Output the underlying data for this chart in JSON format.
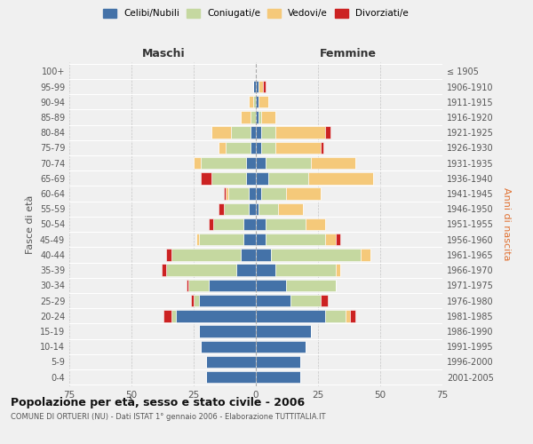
{
  "age_groups": [
    "0-4",
    "5-9",
    "10-14",
    "15-19",
    "20-24",
    "25-29",
    "30-34",
    "35-39",
    "40-44",
    "45-49",
    "50-54",
    "55-59",
    "60-64",
    "65-69",
    "70-74",
    "75-79",
    "80-84",
    "85-89",
    "90-94",
    "95-99",
    "100+"
  ],
  "birth_years": [
    "2001-2005",
    "1996-2000",
    "1991-1995",
    "1986-1990",
    "1981-1985",
    "1976-1980",
    "1971-1975",
    "1966-1970",
    "1961-1965",
    "1956-1960",
    "1951-1955",
    "1946-1950",
    "1941-1945",
    "1936-1940",
    "1931-1935",
    "1926-1930",
    "1921-1925",
    "1916-1920",
    "1911-1915",
    "1906-1910",
    "≤ 1905"
  ],
  "males": {
    "celibi": [
      20,
      20,
      22,
      23,
      32,
      23,
      19,
      8,
      6,
      5,
      5,
      3,
      3,
      4,
      4,
      2,
      2,
      0,
      0,
      1,
      0
    ],
    "coniugati": [
      0,
      0,
      0,
      0,
      2,
      2,
      8,
      28,
      28,
      18,
      12,
      10,
      8,
      14,
      18,
      10,
      8,
      2,
      1,
      0,
      0
    ],
    "vedovi": [
      0,
      0,
      0,
      0,
      0,
      0,
      0,
      0,
      0,
      1,
      0,
      0,
      1,
      0,
      3,
      3,
      8,
      4,
      2,
      0,
      0
    ],
    "divorziati": [
      0,
      0,
      0,
      0,
      3,
      1,
      1,
      2,
      2,
      0,
      2,
      2,
      1,
      4,
      0,
      0,
      0,
      0,
      0,
      0,
      0
    ]
  },
  "females": {
    "nubili": [
      18,
      18,
      20,
      22,
      28,
      14,
      12,
      8,
      6,
      4,
      4,
      1,
      2,
      5,
      4,
      2,
      2,
      1,
      1,
      1,
      0
    ],
    "coniugate": [
      0,
      0,
      0,
      0,
      8,
      12,
      20,
      24,
      36,
      24,
      16,
      8,
      10,
      16,
      18,
      6,
      6,
      1,
      0,
      0,
      0
    ],
    "vedove": [
      0,
      0,
      0,
      0,
      2,
      0,
      0,
      2,
      4,
      4,
      8,
      10,
      14,
      26,
      18,
      18,
      20,
      6,
      4,
      2,
      0
    ],
    "divorziate": [
      0,
      0,
      0,
      0,
      2,
      3,
      0,
      0,
      0,
      2,
      0,
      0,
      0,
      0,
      0,
      1,
      2,
      0,
      0,
      1,
      0
    ]
  },
  "colors": {
    "celibi": "#4472a8",
    "coniugati": "#c5d8a0",
    "vedovi": "#f5c97a",
    "divorziati": "#cc2222"
  },
  "xlim": 75,
  "title": "Popolazione per età, sesso e stato civile - 2006",
  "subtitle": "COMUNE DI ORTUERI (NU) - Dati ISTAT 1° gennaio 2006 - Elaborazione TUTTITALIA.IT",
  "ylabel_left": "Fasce di età",
  "ylabel_right": "Anni di nascita",
  "xlabel_left": "Maschi",
  "xlabel_right": "Femmine",
  "legend_labels": [
    "Celibi/Nubili",
    "Coniugati/e",
    "Vedovi/e",
    "Divorziati/e"
  ],
  "background_color": "#f0f0f0"
}
